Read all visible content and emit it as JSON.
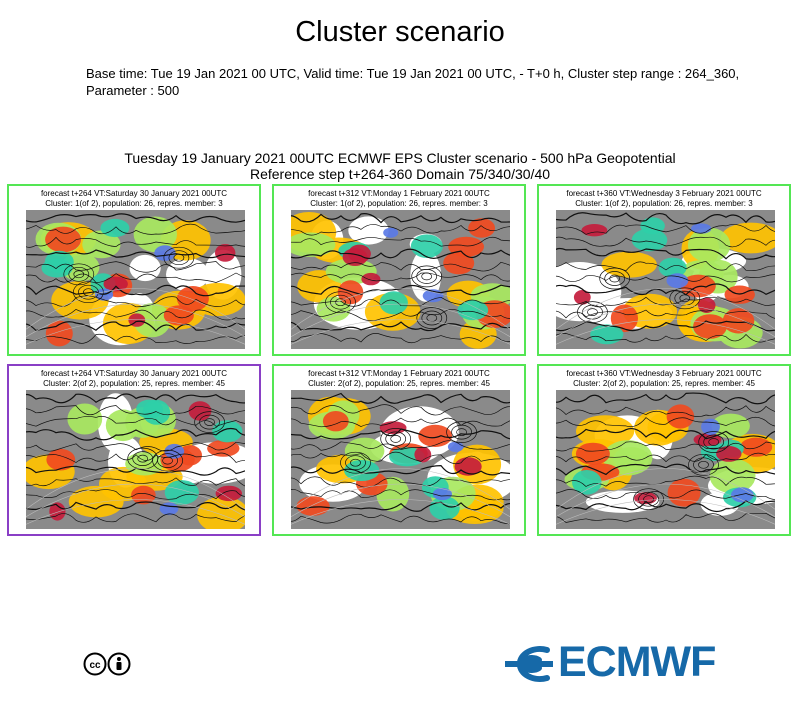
{
  "page_title": "Cluster scenario",
  "meta": {
    "line1": "Base time: Tue 19 Jan 2021 00 UTC, Valid time: Tue 19 Jan 2021 00 UTC, - T+0 h, Cluster step range : 264_360,",
    "line2": "Parameter : 500"
  },
  "chart_data": {
    "type": "heatmap",
    "title": "Tuesday 19 January 2021 00UTC ECMWF EPS Cluster scenario - 500 hPa Geopotential",
    "subtitle": "Reference step t+264-360 Domain 75/340/30/40",
    "panels": [
      {
        "row": 1,
        "col": 1,
        "line1": "forecast t+264 VT:Saturday 30 January 2021 00UTC",
        "line2": "Cluster: 1(of 2), population: 26, repres. member: 3",
        "cluster": 1,
        "step": 264,
        "population": 26,
        "repres_member": 3
      },
      {
        "row": 1,
        "col": 2,
        "line1": "forecast t+312 VT:Monday 1 February 2021 00UTC",
        "line2": "Cluster: 1(of 2), population: 26, repres. member: 3",
        "cluster": 1,
        "step": 312,
        "population": 26,
        "repres_member": 3
      },
      {
        "row": 1,
        "col": 3,
        "line1": "forecast t+360 VT:Wednesday 3 February 2021 00UTC",
        "line2": "Cluster: 1(of 2), population: 26, repres. member: 3",
        "cluster": 1,
        "step": 360,
        "population": 26,
        "repres_member": 3
      },
      {
        "row": 2,
        "col": 1,
        "line1": "forecast t+264 VT:Saturday 30 January 2021 00UTC",
        "line2": "Cluster: 2(of 2), population: 25, repres. member: 45",
        "cluster": 2,
        "step": 264,
        "population": 25,
        "repres_member": 45
      },
      {
        "row": 2,
        "col": 2,
        "line1": "forecast t+312 VT:Monday 1 February 2021 00UTC",
        "line2": "Cluster: 2(of 2), population: 25, repres. member: 45",
        "cluster": 2,
        "step": 312,
        "population": 25,
        "repres_member": 45
      },
      {
        "row": 2,
        "col": 3,
        "line1": "forecast t+360 VT:Wednesday 3 February 2021 00UTC",
        "line2": "Cluster: 2(of 2), population: 25, repres. member: 45",
        "cluster": 2,
        "step": 360,
        "population": 25,
        "repres_member": 45
      }
    ],
    "selected_panel": 4,
    "colors": {
      "frame": "#54e654",
      "selected_frame": "#8a3fc6",
      "positive_strong": "#c41c3c",
      "positive": "#f04a20",
      "positive_weak": "#ffc200",
      "negative_weak": "#a8e860",
      "negative": "#2ecfa8",
      "negative_strong": "#5a7ae6",
      "land": "#8a8a8a"
    }
  },
  "footer": {
    "license": "CC BY",
    "brand": "ECMWF",
    "brand_color": "#1669a8"
  }
}
